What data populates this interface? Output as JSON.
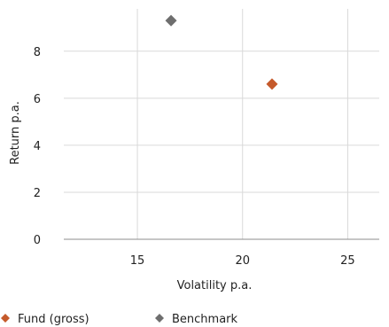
{
  "chart_data": {
    "type": "scatter",
    "xlabel": "Volatility p.a.",
    "ylabel": "Return p.a.",
    "xlim": [
      11.5,
      26.5
    ],
    "ylim": [
      0,
      9.8
    ],
    "x_ticks": [
      15,
      20,
      25
    ],
    "y_ticks": [
      0,
      2,
      4,
      6,
      8
    ],
    "grid": true,
    "legend_position": "bottom",
    "series": [
      {
        "name": "Fund (gross)",
        "color": "#c55a2b",
        "marker": "diamond",
        "x": [
          21.4
        ],
        "y": [
          6.6
        ]
      },
      {
        "name": "Benchmark",
        "color": "#6e6e6e",
        "marker": "diamond",
        "x": [
          16.6
        ],
        "y": [
          9.3
        ]
      }
    ]
  }
}
